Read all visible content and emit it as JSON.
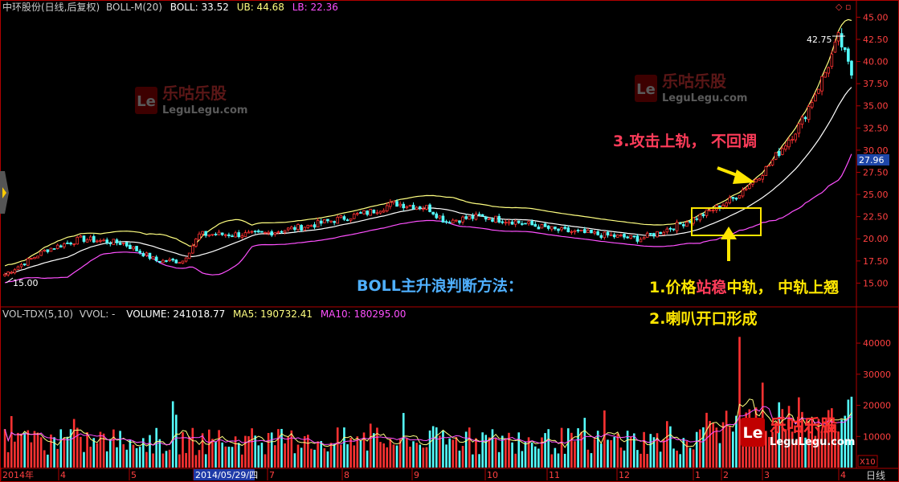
{
  "header": {
    "title": "中环股份(日线,后复权)",
    "indicator": "BOLL-M(20)",
    "boll": "BOLL: 33.52",
    "ub": "UB: 44.68",
    "lb": "LB: 22.36"
  },
  "vol_header": {
    "name": "VOL-TDX(5,10)",
    "vvol": "VVOL: -",
    "volume": "VOLUME: 241018.77",
    "ma5": "MA5: 190732.41",
    "ma10": "MA10: 180295.00"
  },
  "annotations": {
    "step3": "3.攻击上轨， 不回调",
    "method": "BOLL主升浪判断方法：",
    "step1_a": "1.价格",
    "step1_b": "站稳",
    "step1_c": "中轨， 中轨上翘",
    "step2": "2.喇叭开口形成",
    "high_label": "42.75",
    "low_label": "15.00",
    "current_price": "27.96"
  },
  "watermark": {
    "logo": "Le",
    "cn": "乐咕乐股",
    "en": "LeguLegu.com"
  },
  "axis_bottom": {
    "labels": [
      "2014年",
      "4",
      "5",
      "2014/05/29/四",
      "7",
      "8",
      "9",
      "10",
      "11",
      "12",
      "1",
      "2",
      "3",
      "4"
    ],
    "right_label": "日线",
    "unit": "X10"
  },
  "colors": {
    "up": "#ff3232",
    "down": "#54ffff",
    "mid": "#ffffff",
    "upper": "#ffff80",
    "lower": "#ff50ff",
    "annotation_red": "#ff3c5a",
    "annotation_yellow": "#ffe600",
    "annotation_blue": "#4fb0ff",
    "axis": "#b00000"
  },
  "chart_data": [
    {
      "type": "candlestick",
      "title": "中环股份(日线,后复权)",
      "y_ticks": [
        15.0,
        17.5,
        20.0,
        22.5,
        25.0,
        27.5,
        30.0,
        32.5,
        35.0,
        37.5,
        40.0,
        42.5,
        45.0
      ],
      "ylim": [
        12.5,
        45.4
      ],
      "x_range": [
        "2014年",
        "4"
      ],
      "series": [
        {
          "name": "BOLL",
          "last": 33.52
        },
        {
          "name": "UB",
          "last": 44.68
        },
        {
          "name": "LB",
          "last": 22.36
        }
      ],
      "price_path_keypoints": [
        {
          "x": 0.0,
          "y": 16.0
        },
        {
          "x": 0.05,
          "y": 18.8
        },
        {
          "x": 0.09,
          "y": 20.0
        },
        {
          "x": 0.14,
          "y": 19.5
        },
        {
          "x": 0.18,
          "y": 17.5
        },
        {
          "x": 0.21,
          "y": 17.5
        },
        {
          "x": 0.23,
          "y": 20.5
        },
        {
          "x": 0.3,
          "y": 20.5
        },
        {
          "x": 0.36,
          "y": 21.5
        },
        {
          "x": 0.43,
          "y": 23.0
        },
        {
          "x": 0.46,
          "y": 24.0
        },
        {
          "x": 0.5,
          "y": 23.5
        },
        {
          "x": 0.52,
          "y": 22.0
        },
        {
          "x": 0.56,
          "y": 22.5
        },
        {
          "x": 0.6,
          "y": 22.0
        },
        {
          "x": 0.65,
          "y": 21.0
        },
        {
          "x": 0.7,
          "y": 20.5
        },
        {
          "x": 0.75,
          "y": 20.0
        },
        {
          "x": 0.78,
          "y": 21.0
        },
        {
          "x": 0.82,
          "y": 22.5
        },
        {
          "x": 0.86,
          "y": 24.5
        },
        {
          "x": 0.9,
          "y": 28.0
        },
        {
          "x": 0.94,
          "y": 33.0
        },
        {
          "x": 0.97,
          "y": 39.0
        },
        {
          "x": 0.985,
          "y": 42.75
        },
        {
          "x": 1.0,
          "y": 38.5
        }
      ],
      "markers": {
        "high": 42.75,
        "low": 15.0,
        "current": 27.96
      }
    },
    {
      "type": "bar",
      "title": "VOL-TDX(5,10)",
      "y_ticks": [
        10000,
        20000,
        30000,
        40000
      ],
      "ylim": [
        0,
        47000
      ],
      "series": [
        {
          "name": "VOLUME",
          "last": 241018.77
        },
        {
          "name": "MA5",
          "last": 190732.41
        },
        {
          "name": "MA10",
          "last": 180295.0
        }
      ],
      "unit": "X10",
      "notable_spike": 42000
    }
  ]
}
